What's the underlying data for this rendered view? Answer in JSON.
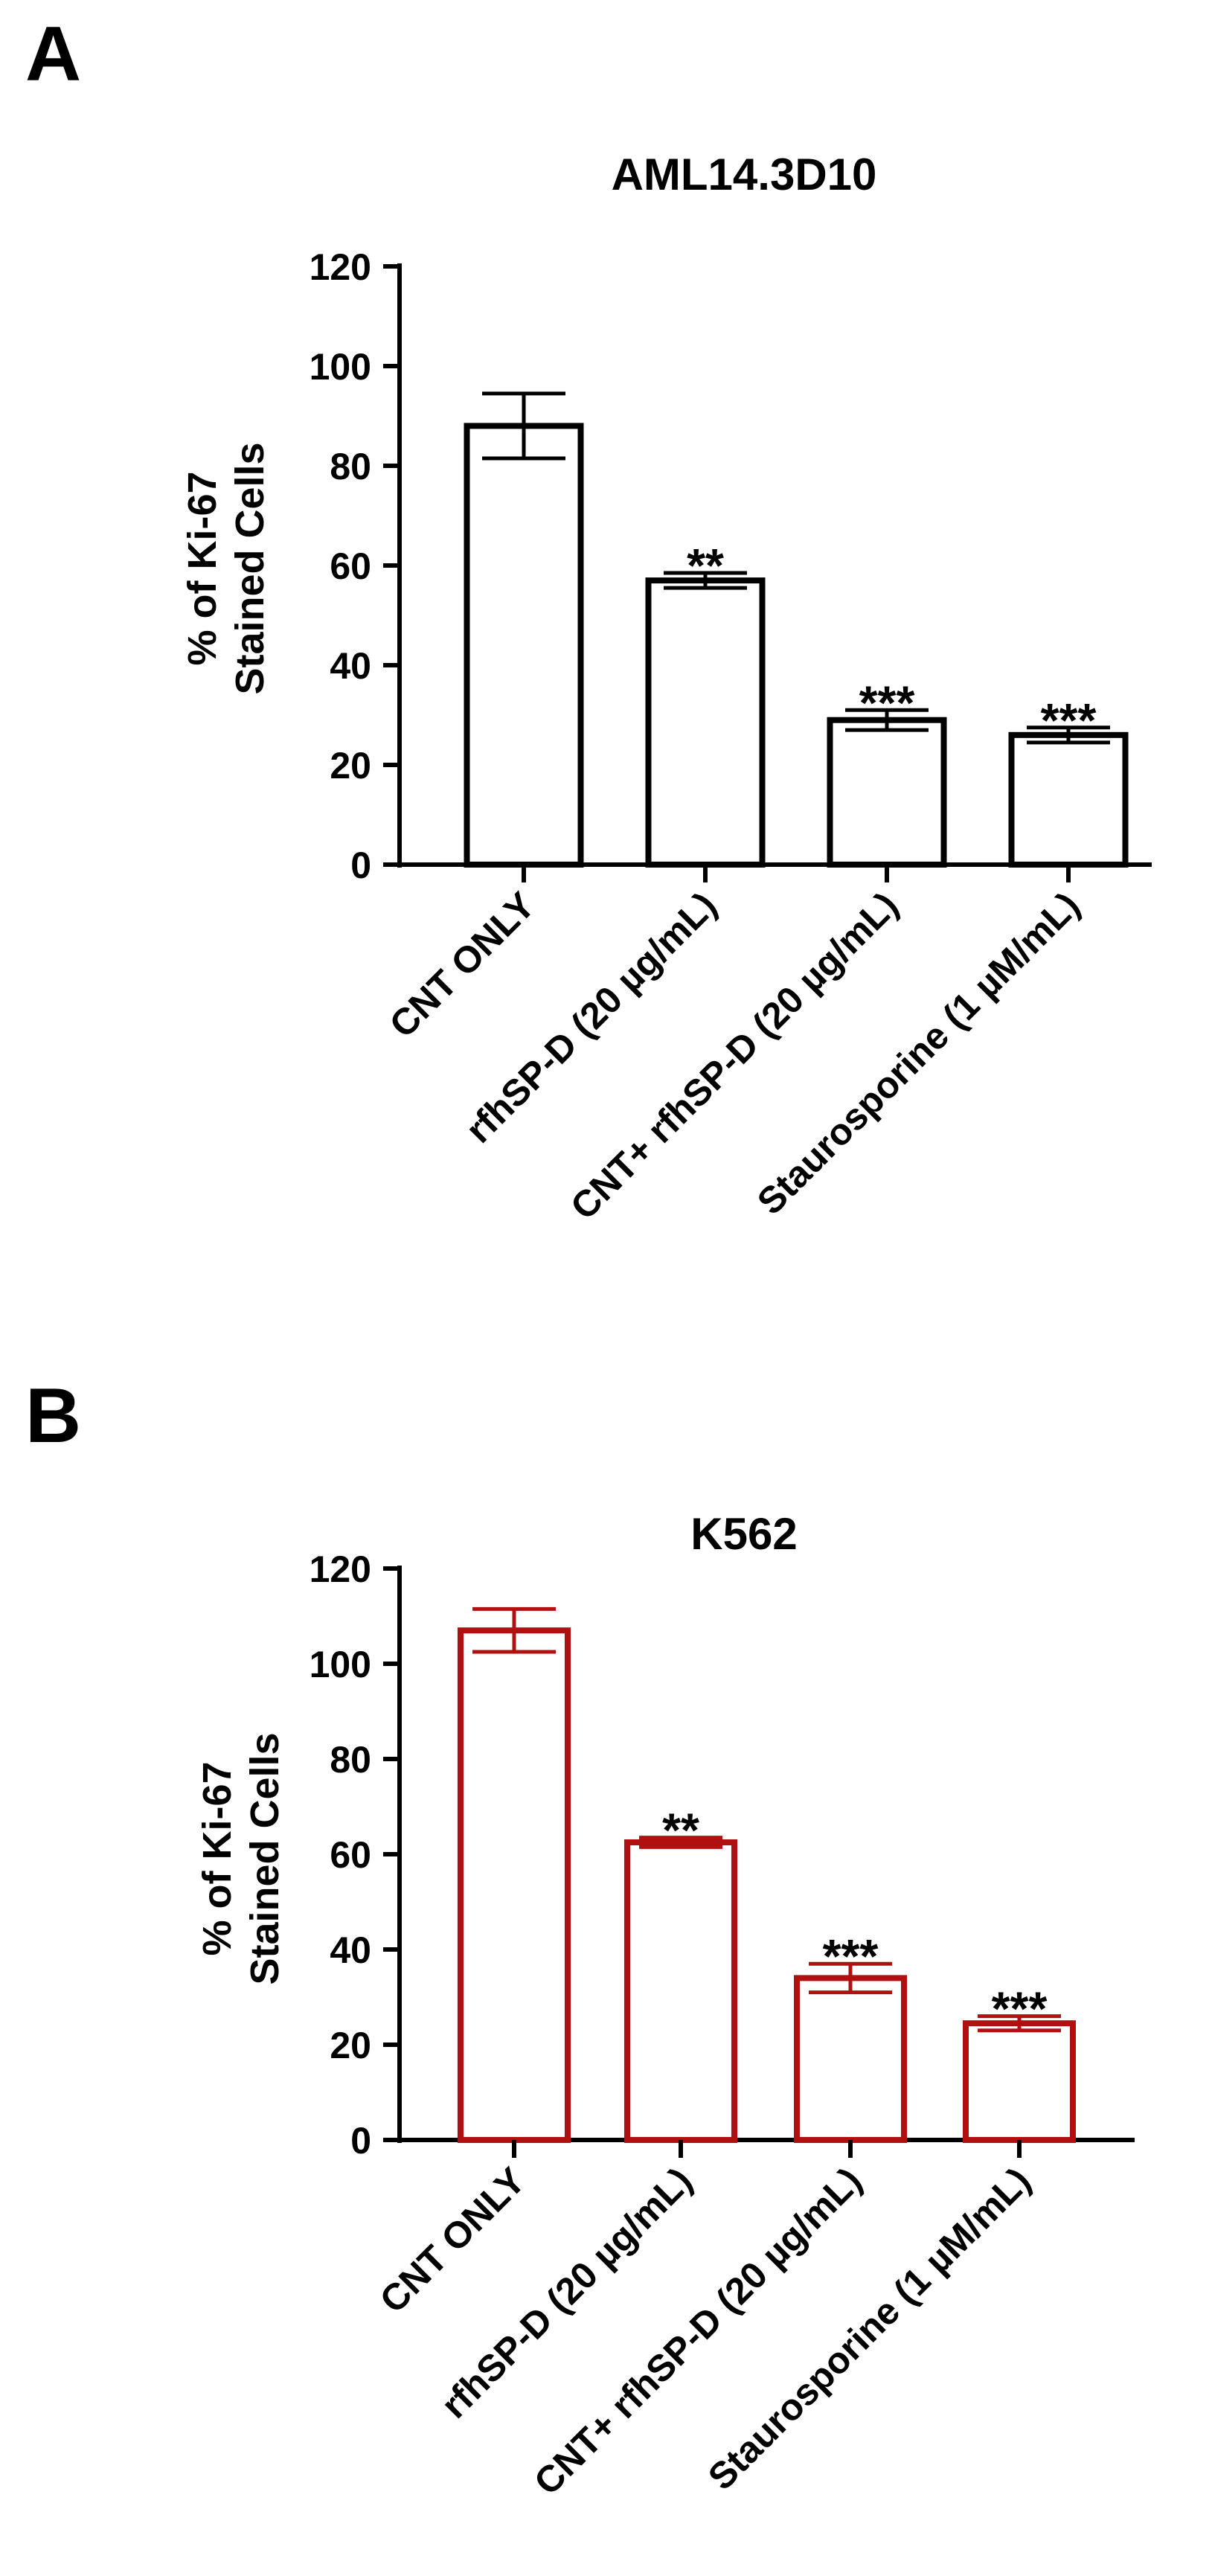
{
  "panels": [
    {
      "letter": "A",
      "chart_data": {
        "type": "bar",
        "title": "AML14.3D10",
        "ylabel_lines": [
          "% of Ki-67",
          "Stained Cells"
        ],
        "xlabel": "",
        "ylim": [
          0,
          120
        ],
        "yticks": [
          0,
          20,
          40,
          60,
          80,
          100,
          120
        ],
        "categories": [
          "CNT ONLY",
          "rfhSP-D (20 µg/mL)",
          "CNT+ rfhSP-D (20 µg/mL)",
          "Staurosporine (1 µM/mL)"
        ],
        "values": [
          88,
          57,
          29,
          26
        ],
        "errors": [
          6.5,
          1.5,
          2,
          1.5
        ],
        "annotations": [
          "",
          "**",
          "***",
          "***"
        ],
        "color": "#000000",
        "grid": false,
        "legend": "none"
      }
    },
    {
      "letter": "B",
      "chart_data": {
        "type": "bar",
        "title": "K562",
        "ylabel_lines": [
          "% of Ki-67",
          "Stained Cells"
        ],
        "xlabel": "",
        "ylim": [
          0,
          120
        ],
        "yticks": [
          0,
          20,
          40,
          60,
          80,
          100,
          120
        ],
        "categories": [
          "CNT ONLY",
          "rfhSP-D (20 µg/mL)",
          "CNT+ rfhSP-D (20 µg/mL)",
          "Staurosporine (1 µM/mL)"
        ],
        "values": [
          107,
          62.5,
          34,
          24.5
        ],
        "errors": [
          4.5,
          1,
          3,
          1.5
        ],
        "annotations": [
          "",
          "**",
          "***",
          "***"
        ],
        "color": "#b01010",
        "grid": false,
        "legend": "none"
      }
    }
  ]
}
